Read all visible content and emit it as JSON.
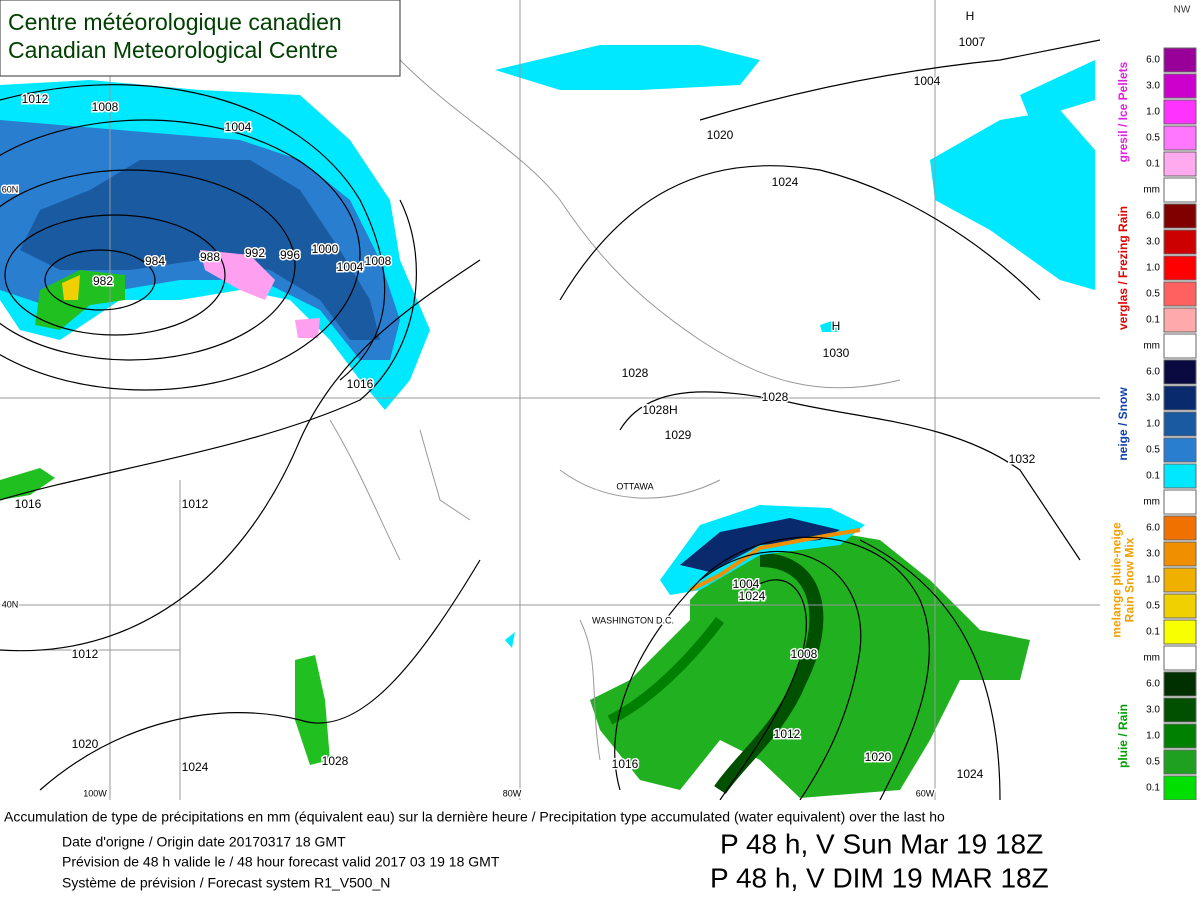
{
  "header": {
    "title_fr": "Centre météorologique canadien",
    "title_en": "Canadian Meteorological Centre"
  },
  "legend": {
    "corner": "NW",
    "levels": [
      "6.0",
      "3.0",
      "1.0",
      "0.5",
      "0.1"
    ],
    "unit": "mm",
    "groups": [
      {
        "label": [
          "gresil / Ice Pellets"
        ],
        "label_color": "#e020e0",
        "colors": [
          "#990099",
          "#cc00cc",
          "#ff33ff",
          "#ff77ff",
          "#ffaaee"
        ]
      },
      {
        "label": [
          "verglas / Frezing Rain"
        ],
        "label_color": "#e00000",
        "colors": [
          "#800000",
          "#cc0000",
          "#ff0000",
          "#ff6060",
          "#ffaaaa"
        ]
      },
      {
        "label": [
          "neige / Snow"
        ],
        "label_color": "#1040b0",
        "colors": [
          "#0a0a40",
          "#0a2a6e",
          "#1a5aa0",
          "#2a7ed0",
          "#00e8ff"
        ]
      },
      {
        "label": [
          "melange pluie-neige",
          "Rain Snow Mix"
        ],
        "label_color": "#f0a000",
        "colors": [
          "#f07000",
          "#f09000",
          "#f0b000",
          "#f0d000",
          "#f8ff00"
        ]
      },
      {
        "label": [
          "pluie / Rain"
        ],
        "label_color": "#00a000",
        "colors": [
          "#003000",
          "#005000",
          "#008000",
          "#20a020",
          "#00e000"
        ]
      }
    ]
  },
  "map": {
    "labels": [
      "1012",
      "1008",
      "1004",
      "982",
      "984",
      "988",
      "992",
      "996",
      "1000",
      "1004",
      "1008",
      "1016",
      "1016",
      "1012",
      "1012",
      "1020",
      "1024",
      "1028",
      "1020",
      "1024",
      "1004",
      "H",
      "1007",
      "H",
      "1030",
      "1028",
      "1028",
      "1028H",
      "1029",
      "OTTAWA",
      "WASHINGTON D.C.",
      "1004",
      "1024",
      "1008",
      "1012",
      "1016",
      "1020",
      "1024",
      "1032",
      "60N",
      "40N",
      "100W",
      "80W",
      "60W"
    ]
  },
  "footer": {
    "description": "Accumulation de type de précipitations en mm (équivalent eau) sur la dernière heure / Precipitation type accumulated (water equivalent) over the last ho",
    "origin": "Date d'origne / Origin date 20170317 18 GMT",
    "forecast": "Prévision de 48 h valide le / 48 hour forecast valid 2017 03 19 18 GMT",
    "system": "Système de prévision / Forecast system R1_V500_N",
    "valid_en": "P 48 h, V Sun Mar 19 18Z",
    "valid_fr": "P 48 h, V DIM 19 MAR 18Z"
  }
}
